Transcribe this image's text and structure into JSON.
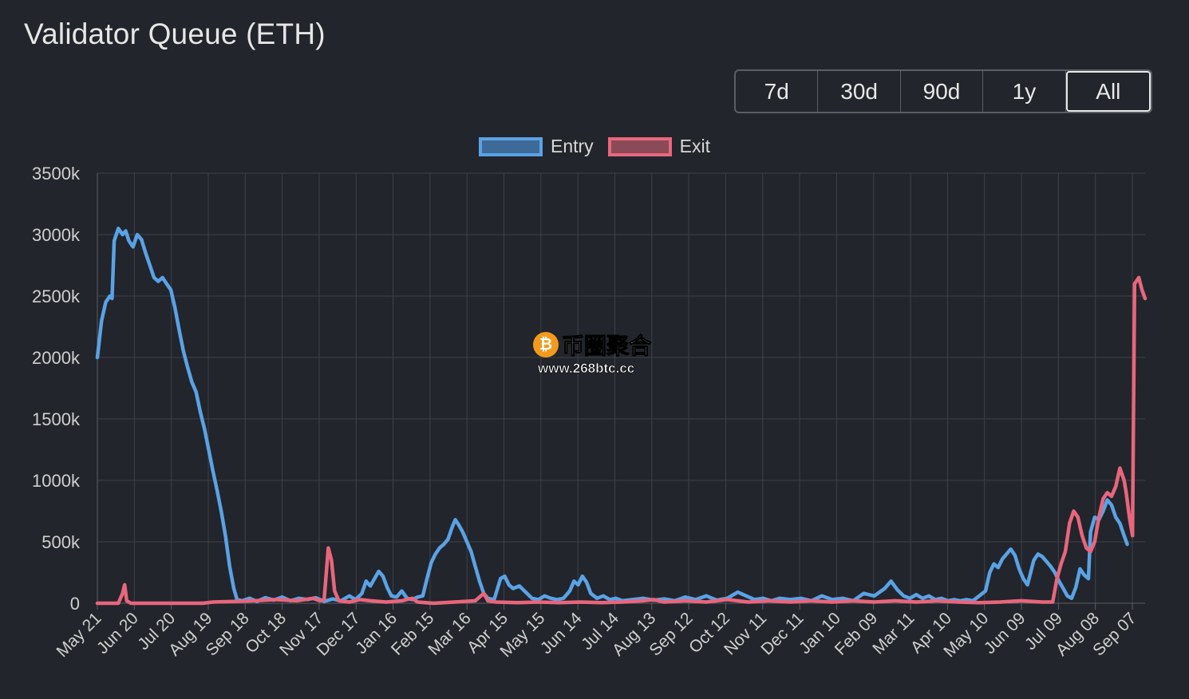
{
  "page": {
    "title": "Validator Queue (ETH)"
  },
  "range_buttons": [
    {
      "label": "7d",
      "active": false
    },
    {
      "label": "30d",
      "active": false
    },
    {
      "label": "90d",
      "active": false
    },
    {
      "label": "1y",
      "active": false
    },
    {
      "label": "All",
      "active": true
    }
  ],
  "legend": [
    {
      "label": "Entry",
      "stroke": "#5aa2e6",
      "fill": "#3e6a98"
    },
    {
      "label": "Exit",
      "stroke": "#e8667c",
      "fill": "#8a4a58"
    }
  ],
  "watermark": {
    "coin": "₿",
    "name": "币圈聚合",
    "url": "www.268btc.cc"
  },
  "chart_data": {
    "type": "line",
    "title": "Validator Queue (ETH)",
    "ylim": [
      0,
      3500000
    ],
    "y_ticks": [
      {
        "value": 0,
        "label": "0"
      },
      {
        "value": 500000,
        "label": "500k"
      },
      {
        "value": 1000000,
        "label": "1000k"
      },
      {
        "value": 1500000,
        "label": "1500k"
      },
      {
        "value": 2000000,
        "label": "2000k"
      },
      {
        "value": 2500000,
        "label": "2500k"
      },
      {
        "value": 3000000,
        "label": "3000k"
      },
      {
        "value": 3500000,
        "label": "3500k"
      }
    ],
    "x_ticks": [
      "May 21",
      "Jun 20",
      "Jul 20",
      "Aug 19",
      "Sep 18",
      "Oct 18",
      "Nov 17",
      "Dec 17",
      "Jan 16",
      "Feb 15",
      "Mar 16",
      "Apr 15",
      "May 15",
      "Jun 14",
      "Jul 14",
      "Aug 13",
      "Sep 12",
      "Oct 12",
      "Nov 11",
      "Dec 11",
      "Jan 10",
      "Feb 09",
      "Mar 11",
      "Apr 10",
      "May 10",
      "Jun 09",
      "Jul 09",
      "Aug 08",
      "Sep 07"
    ],
    "grid": true,
    "legend_position": "top-center",
    "series": [
      {
        "name": "Entry",
        "color": "#5aa2e6",
        "points": [
          [
            0,
            2000000
          ],
          [
            4,
            2300000
          ],
          [
            8,
            2450000
          ],
          [
            12,
            2500000
          ],
          [
            14,
            2480000
          ],
          [
            16,
            2950000
          ],
          [
            20,
            3050000
          ],
          [
            24,
            3000000
          ],
          [
            27,
            3030000
          ],
          [
            30,
            2950000
          ],
          [
            34,
            2900000
          ],
          [
            38,
            3000000
          ],
          [
            42,
            2960000
          ],
          [
            46,
            2850000
          ],
          [
            50,
            2750000
          ],
          [
            54,
            2650000
          ],
          [
            58,
            2620000
          ],
          [
            62,
            2650000
          ],
          [
            66,
            2600000
          ],
          [
            70,
            2550000
          ],
          [
            74,
            2400000
          ],
          [
            78,
            2220000
          ],
          [
            82,
            2050000
          ],
          [
            86,
            1920000
          ],
          [
            90,
            1800000
          ],
          [
            94,
            1720000
          ],
          [
            98,
            1560000
          ],
          [
            102,
            1420000
          ],
          [
            106,
            1250000
          ],
          [
            110,
            1080000
          ],
          [
            114,
            920000
          ],
          [
            118,
            750000
          ],
          [
            122,
            550000
          ],
          [
            126,
            300000
          ],
          [
            130,
            120000
          ],
          [
            133,
            30000
          ],
          [
            138,
            20000
          ],
          [
            145,
            40000
          ],
          [
            152,
            15000
          ],
          [
            160,
            45000
          ],
          [
            168,
            25000
          ],
          [
            176,
            50000
          ],
          [
            184,
            20000
          ],
          [
            192,
            40000
          ],
          [
            200,
            30000
          ],
          [
            208,
            45000
          ],
          [
            216,
            15000
          ],
          [
            224,
            35000
          ],
          [
            232,
            20000
          ],
          [
            240,
            60000
          ],
          [
            246,
            30000
          ],
          [
            252,
            80000
          ],
          [
            256,
            180000
          ],
          [
            260,
            140000
          ],
          [
            264,
            200000
          ],
          [
            268,
            260000
          ],
          [
            272,
            220000
          ],
          [
            276,
            130000
          ],
          [
            280,
            60000
          ],
          [
            285,
            50000
          ],
          [
            290,
            100000
          ],
          [
            295,
            40000
          ],
          [
            300,
            30000
          ],
          [
            305,
            50000
          ],
          [
            310,
            60000
          ],
          [
            314,
            200000
          ],
          [
            318,
            330000
          ],
          [
            322,
            400000
          ],
          [
            326,
            450000
          ],
          [
            330,
            480000
          ],
          [
            334,
            520000
          ],
          [
            338,
            620000
          ],
          [
            341,
            680000
          ],
          [
            344,
            640000
          ],
          [
            348,
            580000
          ],
          [
            352,
            500000
          ],
          [
            356,
            420000
          ],
          [
            360,
            300000
          ],
          [
            364,
            180000
          ],
          [
            368,
            80000
          ],
          [
            372,
            40000
          ],
          [
            378,
            30000
          ],
          [
            384,
            200000
          ],
          [
            388,
            220000
          ],
          [
            392,
            150000
          ],
          [
            396,
            120000
          ],
          [
            402,
            140000
          ],
          [
            408,
            90000
          ],
          [
            414,
            40000
          ],
          [
            420,
            30000
          ],
          [
            426,
            60000
          ],
          [
            432,
            40000
          ],
          [
            438,
            30000
          ],
          [
            444,
            40000
          ],
          [
            450,
            100000
          ],
          [
            454,
            180000
          ],
          [
            458,
            150000
          ],
          [
            462,
            220000
          ],
          [
            466,
            170000
          ],
          [
            470,
            80000
          ],
          [
            476,
            40000
          ],
          [
            482,
            60000
          ],
          [
            488,
            30000
          ],
          [
            494,
            40000
          ],
          [
            500,
            20000
          ],
          [
            510,
            30000
          ],
          [
            520,
            40000
          ],
          [
            530,
            25000
          ],
          [
            540,
            35000
          ],
          [
            550,
            20000
          ],
          [
            560,
            50000
          ],
          [
            570,
            30000
          ],
          [
            580,
            60000
          ],
          [
            590,
            25000
          ],
          [
            600,
            40000
          ],
          [
            610,
            90000
          ],
          [
            618,
            60000
          ],
          [
            626,
            30000
          ],
          [
            634,
            40000
          ],
          [
            642,
            20000
          ],
          [
            650,
            40000
          ],
          [
            660,
            30000
          ],
          [
            670,
            40000
          ],
          [
            680,
            20000
          ],
          [
            690,
            60000
          ],
          [
            700,
            30000
          ],
          [
            710,
            40000
          ],
          [
            720,
            20000
          ],
          [
            730,
            80000
          ],
          [
            740,
            60000
          ],
          [
            750,
            120000
          ],
          [
            756,
            180000
          ],
          [
            762,
            110000
          ],
          [
            768,
            60000
          ],
          [
            774,
            40000
          ],
          [
            780,
            70000
          ],
          [
            786,
            40000
          ],
          [
            792,
            60000
          ],
          [
            798,
            30000
          ],
          [
            804,
            40000
          ],
          [
            810,
            20000
          ],
          [
            816,
            30000
          ],
          [
            822,
            20000
          ],
          [
            828,
            30000
          ],
          [
            834,
            20000
          ],
          [
            840,
            60000
          ],
          [
            846,
            100000
          ],
          [
            850,
            250000
          ],
          [
            854,
            320000
          ],
          [
            858,
            290000
          ],
          [
            862,
            360000
          ],
          [
            866,
            400000
          ],
          [
            870,
            440000
          ],
          [
            874,
            390000
          ],
          [
            878,
            280000
          ],
          [
            882,
            200000
          ],
          [
            886,
            150000
          ],
          [
            892,
            350000
          ],
          [
            896,
            400000
          ],
          [
            900,
            380000
          ],
          [
            904,
            340000
          ],
          [
            908,
            300000
          ],
          [
            912,
            250000
          ],
          [
            916,
            180000
          ],
          [
            920,
            120000
          ],
          [
            924,
            60000
          ],
          [
            928,
            40000
          ],
          [
            932,
            130000
          ],
          [
            936,
            280000
          ],
          [
            940,
            230000
          ],
          [
            944,
            200000
          ],
          [
            946,
            580000
          ],
          [
            950,
            700000
          ],
          [
            954,
            680000
          ],
          [
            958,
            750000
          ],
          [
            962,
            840000
          ],
          [
            966,
            800000
          ],
          [
            970,
            700000
          ],
          [
            974,
            650000
          ],
          [
            978,
            550000
          ],
          [
            981,
            480000
          ]
        ]
      },
      {
        "name": "Exit",
        "color": "#e8667c",
        "points": [
          [
            0,
            0
          ],
          [
            20,
            0
          ],
          [
            24,
            80000
          ],
          [
            26,
            150000
          ],
          [
            28,
            20000
          ],
          [
            32,
            0
          ],
          [
            100,
            0
          ],
          [
            110,
            10000
          ],
          [
            130,
            15000
          ],
          [
            150,
            20000
          ],
          [
            170,
            30000
          ],
          [
            190,
            20000
          ],
          [
            205,
            40000
          ],
          [
            212,
            20000
          ],
          [
            216,
            30000
          ],
          [
            220,
            450000
          ],
          [
            223,
            350000
          ],
          [
            226,
            100000
          ],
          [
            230,
            20000
          ],
          [
            240,
            10000
          ],
          [
            250,
            30000
          ],
          [
            260,
            20000
          ],
          [
            275,
            10000
          ],
          [
            290,
            20000
          ],
          [
            300,
            40000
          ],
          [
            305,
            10000
          ],
          [
            320,
            0
          ],
          [
            340,
            10000
          ],
          [
            360,
            20000
          ],
          [
            368,
            80000
          ],
          [
            372,
            20000
          ],
          [
            380,
            10000
          ],
          [
            400,
            5000
          ],
          [
            420,
            10000
          ],
          [
            440,
            5000
          ],
          [
            460,
            10000
          ],
          [
            480,
            5000
          ],
          [
            500,
            10000
          ],
          [
            520,
            20000
          ],
          [
            530,
            30000
          ],
          [
            540,
            10000
          ],
          [
            560,
            20000
          ],
          [
            580,
            10000
          ],
          [
            600,
            30000
          ],
          [
            620,
            10000
          ],
          [
            640,
            20000
          ],
          [
            660,
            10000
          ],
          [
            680,
            20000
          ],
          [
            700,
            10000
          ],
          [
            720,
            20000
          ],
          [
            740,
            10000
          ],
          [
            760,
            20000
          ],
          [
            780,
            10000
          ],
          [
            800,
            20000
          ],
          [
            820,
            10000
          ],
          [
            840,
            5000
          ],
          [
            860,
            10000
          ],
          [
            880,
            20000
          ],
          [
            900,
            10000
          ],
          [
            910,
            10000
          ],
          [
            914,
            200000
          ],
          [
            918,
            320000
          ],
          [
            922,
            420000
          ],
          [
            926,
            650000
          ],
          [
            930,
            750000
          ],
          [
            934,
            700000
          ],
          [
            938,
            550000
          ],
          [
            942,
            450000
          ],
          [
            946,
            420000
          ],
          [
            950,
            500000
          ],
          [
            954,
            700000
          ],
          [
            958,
            850000
          ],
          [
            962,
            900000
          ],
          [
            966,
            870000
          ],
          [
            970,
            950000
          ],
          [
            974,
            1100000
          ],
          [
            978,
            1000000
          ],
          [
            980,
            900000
          ],
          [
            983,
            700000
          ],
          [
            986,
            550000
          ],
          [
            988,
            2600000
          ],
          [
            992,
            2650000
          ],
          [
            995,
            2550000
          ],
          [
            998,
            2480000
          ]
        ]
      }
    ]
  }
}
